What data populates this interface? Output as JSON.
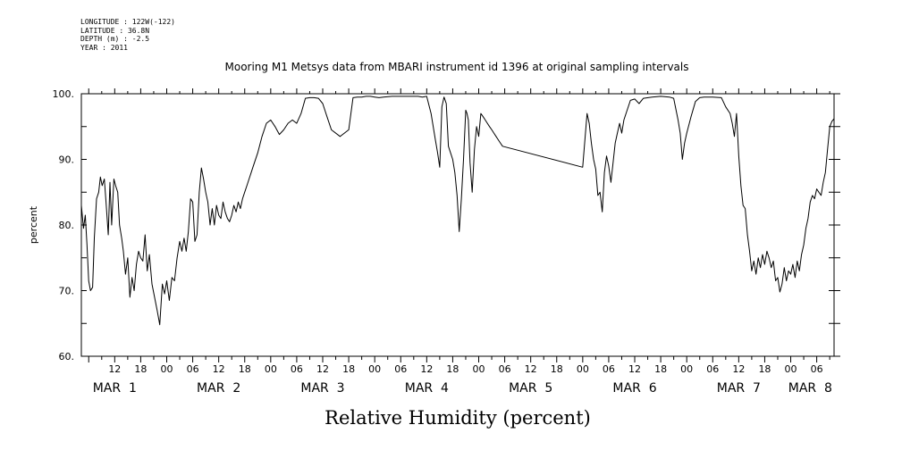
{
  "metadata": {
    "longitude": "LONGITUDE : 122W(-122)",
    "latitude": "LATITUDE : 36.8N",
    "depth": "DEPTH (m) : -2.5",
    "year": "YEAR : 2011"
  },
  "chart_data": {
    "type": "line",
    "title": "Mooring M1 Metsys data from MBARI instrument id 1396 at original sampling intervals",
    "xlabel": "Relative Humidity (percent)",
    "ylabel": "percent",
    "ylim": [
      60,
      100
    ],
    "yticks": [
      "60.",
      "70.",
      "80.",
      "90.",
      "100."
    ],
    "x_unit": "hours since MAR 1 00:00",
    "xlim": [
      4.3,
      178
    ],
    "hour_ticks": [
      {
        "h": 12,
        "label": "12"
      },
      {
        "h": 18,
        "label": "18"
      },
      {
        "h": 24,
        "label": "00"
      },
      {
        "h": 30,
        "label": "06"
      },
      {
        "h": 36,
        "label": "12"
      },
      {
        "h": 42,
        "label": "18"
      },
      {
        "h": 48,
        "label": "00"
      },
      {
        "h": 54,
        "label": "06"
      },
      {
        "h": 60,
        "label": "12"
      },
      {
        "h": 66,
        "label": "18"
      },
      {
        "h": 72,
        "label": "00"
      },
      {
        "h": 78,
        "label": "06"
      },
      {
        "h": 84,
        "label": "12"
      },
      {
        "h": 90,
        "label": "18"
      },
      {
        "h": 96,
        "label": "00"
      },
      {
        "h": 102,
        "label": "06"
      },
      {
        "h": 108,
        "label": "12"
      },
      {
        "h": 114,
        "label": "18"
      },
      {
        "h": 120,
        "label": "00"
      },
      {
        "h": 126,
        "label": "06"
      },
      {
        "h": 132,
        "label": "12"
      },
      {
        "h": 138,
        "label": "18"
      },
      {
        "h": 144,
        "label": "00"
      },
      {
        "h": 150,
        "label": "06"
      },
      {
        "h": 156,
        "label": "12"
      },
      {
        "h": 162,
        "label": "18"
      },
      {
        "h": 168,
        "label": "00"
      },
      {
        "h": 174,
        "label": "06"
      }
    ],
    "date_labels": [
      {
        "h": 12,
        "label": "MAR  1"
      },
      {
        "h": 36,
        "label": "MAR  2"
      },
      {
        "h": 60,
        "label": "MAR  3"
      },
      {
        "h": 84,
        "label": "MAR  4"
      },
      {
        "h": 108,
        "label": "MAR  5"
      },
      {
        "h": 132,
        "label": "MAR  6"
      },
      {
        "h": 156,
        "label": "MAR  7"
      },
      {
        "h": 172.5,
        "label": "MAR  8"
      }
    ],
    "series": [
      {
        "color": "#000000",
        "x": [
          4.3,
          4.8,
          5.2,
          5.6,
          6.0,
          6.4,
          6.9,
          7.3,
          7.8,
          8.3,
          8.7,
          9.1,
          9.6,
          10.0,
          10.5,
          10.9,
          11.3,
          11.8,
          12.2,
          12.7,
          13.1,
          13.6,
          14.0,
          14.5,
          15.0,
          15.5,
          16.0,
          16.5,
          17.0,
          17.5,
          18.0,
          18.5,
          19.0,
          19.5,
          20.0,
          20.6,
          21.2,
          21.8,
          22.4,
          23.0,
          23.5,
          24.0,
          24.6,
          25.2,
          25.8,
          26.4,
          27.0,
          27.5,
          28.0,
          28.5,
          29.0,
          29.5,
          30.0,
          30.5,
          31.0,
          31.5,
          32.0,
          32.5,
          33.0,
          33.5,
          34.0,
          34.5,
          35.0,
          35.5,
          36.0,
          36.5,
          37.0,
          37.5,
          38.0,
          38.5,
          39.0,
          39.5,
          40.0,
          40.5,
          41.0,
          41.5,
          42.0,
          42.5,
          43.0,
          43.5,
          44.0,
          45.0,
          46.0,
          47.0,
          48.0,
          49.0,
          50.0,
          51.0,
          52.0,
          53.0,
          54.0,
          55.0,
          56.0,
          57.0,
          58.0,
          59.0,
          60.0,
          61.0,
          62.0,
          64.0,
          66.0,
          67.0,
          68.0,
          69.0,
          70.0,
          70.5,
          71.0,
          72.0,
          73.0,
          74.0,
          76.0,
          78.0,
          80.0,
          82.0,
          83.0,
          84.0,
          85.0,
          86.0,
          86.5,
          87.0,
          87.5,
          88.0,
          88.5,
          89.0,
          89.5,
          90.0,
          90.5,
          91.0,
          91.5,
          92.0,
          92.5,
          93.0,
          93.3,
          93.6,
          94.0,
          94.5,
          95.0,
          95.5,
          96.0,
          96.5,
          97.0,
          97.5,
          98.0,
          98.5,
          99.0,
          99.5,
          100.0,
          100.5,
          101.0,
          101.5,
          120.0,
          121.0,
          121.5,
          122.0,
          122.5,
          123.0,
          123.5,
          124.0,
          124.5,
          125.0,
          125.5,
          126.0,
          126.5,
          127.0,
          127.5,
          128.0,
          128.5,
          129.0,
          129.5,
          130.0,
          131.0,
          132.0,
          133.0,
          134.0,
          136.0,
          138.0,
          140.0,
          141.0,
          142.0,
          142.5,
          143.0,
          143.5,
          144.0,
          145.0,
          146.0,
          147.0,
          148.0,
          150.0,
          152.0,
          153.0,
          154.0,
          154.5,
          155.0,
          155.5,
          156.0,
          156.5,
          157.0,
          157.5,
          158.0,
          158.5,
          159.0,
          159.5,
          160.0,
          160.5,
          161.0,
          161.5,
          162.0,
          162.5,
          163.0,
          163.5,
          164.0,
          164.5,
          165.0,
          165.5,
          166.0,
          166.5,
          167.0,
          167.5,
          168.0,
          168.5,
          169.0,
          169.5,
          170.0,
          170.5,
          171.0,
          171.5,
          172.0,
          172.5,
          173.0,
          173.5,
          174.0,
          174.5,
          175.0,
          175.5,
          176.0,
          176.5,
          177.0,
          177.5,
          178.0
        ],
        "y": [
          83.0,
          79.5,
          81.5,
          77.0,
          71.5,
          70.0,
          70.5,
          78.0,
          84.0,
          85.0,
          87.3,
          86.0,
          87.0,
          83.5,
          78.5,
          86.5,
          80.0,
          87.0,
          86.0,
          85.0,
          80.0,
          78.0,
          76.0,
          72.5,
          75.0,
          69.0,
          72.0,
          70.0,
          74.0,
          76.0,
          75.0,
          74.5,
          78.5,
          73.0,
          75.5,
          71.0,
          69.0,
          67.0,
          64.8,
          71.0,
          69.5,
          71.5,
          68.5,
          72.0,
          71.5,
          75.0,
          77.5,
          76.0,
          78.0,
          76.0,
          79.0,
          84.0,
          83.5,
          77.5,
          78.5,
          85.0,
          88.7,
          87.0,
          85.0,
          83.5,
          80.0,
          82.5,
          80.0,
          83.0,
          81.5,
          81.0,
          83.5,
          82.0,
          81.0,
          80.5,
          81.5,
          83.0,
          82.0,
          83.5,
          82.5,
          84.0,
          85.0,
          86.0,
          87.0,
          88.0,
          89.0,
          91.0,
          93.5,
          95.5,
          96.0,
          95.0,
          93.8,
          94.5,
          95.5,
          96.0,
          95.5,
          97.0,
          99.3,
          99.4,
          99.4,
          99.3,
          98.5,
          96.5,
          94.5,
          93.5,
          94.5,
          99.4,
          99.5,
          99.5,
          99.6,
          99.6,
          99.6,
          99.5,
          99.4,
          99.5,
          99.6,
          99.6,
          99.6,
          99.6,
          99.5,
          99.6,
          97.0,
          93.0,
          91.0,
          88.8,
          98.0,
          99.5,
          98.5,
          92.0,
          91.0,
          90.0,
          88.0,
          84.5,
          79.0,
          84.0,
          90.0,
          97.5,
          97.0,
          96.0,
          89.5,
          85.0,
          91.5,
          95.0,
          93.5,
          97.0,
          96.5,
          96.0,
          95.5,
          95.0,
          94.5,
          94.0,
          93.5,
          93.0,
          92.5,
          92.0,
          88.8,
          97.0,
          95.5,
          92.5,
          90.0,
          88.5,
          84.5,
          85.0,
          82.0,
          88.0,
          90.5,
          89.0,
          86.5,
          89.5,
          92.5,
          94.0,
          95.5,
          94.0,
          96.0,
          97.0,
          99.0,
          99.2,
          98.5,
          99.3,
          99.5,
          99.6,
          99.5,
          99.3,
          96.0,
          94.0,
          90.0,
          92.5,
          94.0,
          96.5,
          98.8,
          99.4,
          99.5,
          99.5,
          99.4,
          98.0,
          97.0,
          95.5,
          93.5,
          97.0,
          90.5,
          86.0,
          83.0,
          82.5,
          78.5,
          76.0,
          73.0,
          74.5,
          72.5,
          75.0,
          73.5,
          75.5,
          74.0,
          76.0,
          75.0,
          73.5,
          74.5,
          71.5,
          72.0,
          69.8,
          71.0,
          73.5,
          71.5,
          73.0,
          72.5,
          74.0,
          72.0,
          74.5,
          73.0,
          75.5,
          77.0,
          79.5,
          81.0,
          83.5,
          84.5,
          84.0,
          85.5,
          85.0,
          84.5,
          86.5,
          88.0,
          91.5,
          95.0,
          95.8,
          96.2
        ]
      }
    ]
  }
}
